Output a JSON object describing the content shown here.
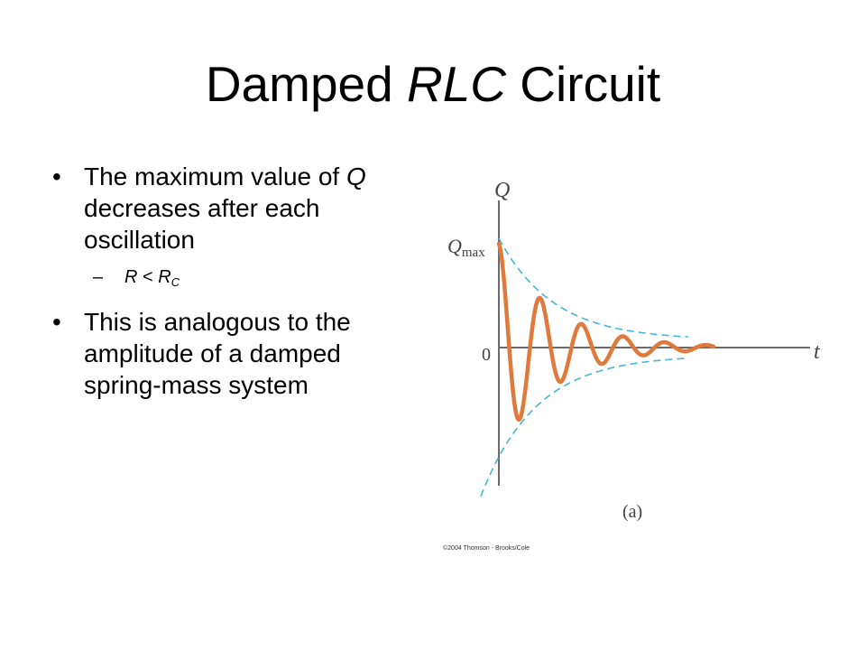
{
  "slide": {
    "title_prefix": "Damped ",
    "title_italic": "RLC",
    "title_suffix": " Circuit"
  },
  "bullets": [
    {
      "marker": "•",
      "pre": "The maximum value of ",
      "italic": "Q",
      "post": " decreases after each oscillation",
      "sub": {
        "dash": "–",
        "lhs": "R",
        "op": " < ",
        "rhs": "R",
        "rhs_subscript": "C"
      }
    },
    {
      "marker": "•",
      "text": "This is analogous to the amplitude of a damped spring-mass system"
    }
  ],
  "figure": {
    "y_axis_label": "Q",
    "q_max_label": "Q",
    "q_max_subscript": "max",
    "zero_label": "0",
    "x_axis_label": "t",
    "caption": "(a)",
    "credit": "©2004 Thomson - Brooks/Cole",
    "colors": {
      "curve": "#e07a3c",
      "envelope": "#47b5d6",
      "axes": "#6b6b6b",
      "labels": "#444444"
    }
  }
}
